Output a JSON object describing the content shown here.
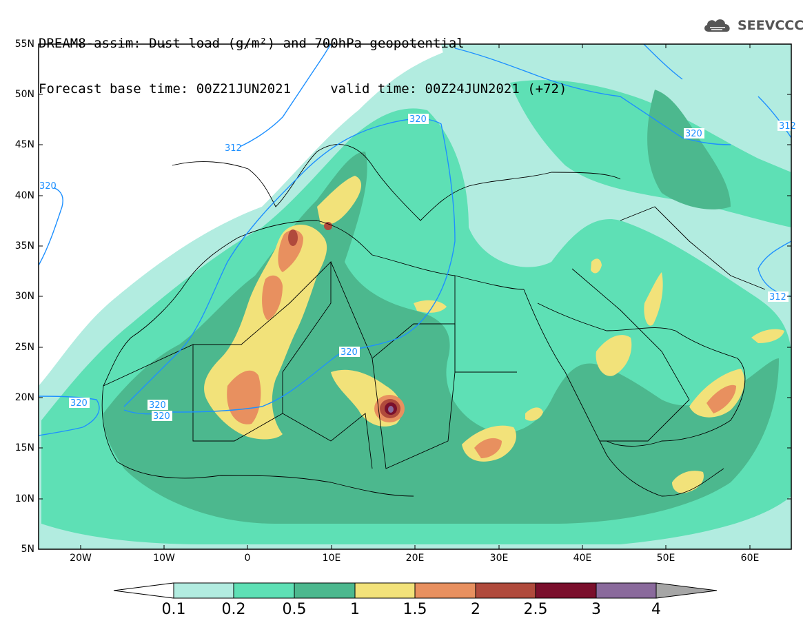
{
  "header": {
    "title_line1": "DREAM8-assim: Dust load (g/m²) and 700hPa geopotential",
    "title_line2": "Forecast base time: 00Z21JUN2021     valid time: 00Z24JUN2021 (+72)",
    "logo_text": "SEEVCCC"
  },
  "axes": {
    "lat_labels": [
      "55N",
      "50N",
      "45N",
      "40N",
      "35N",
      "30N",
      "25N",
      "20N",
      "15N",
      "10N",
      "5N"
    ],
    "lon_labels": [
      "20W",
      "10W",
      "0",
      "10E",
      "20E",
      "30E",
      "40E",
      "50E",
      "60E"
    ]
  },
  "contours": {
    "labels": [
      "320",
      "312",
      "320",
      "320",
      "320",
      "320",
      "312",
      "312",
      "320",
      "320"
    ],
    "color": "#1e90ff"
  },
  "colorbar": {
    "levels": [
      "0.1",
      "0.2",
      "0.5",
      "1",
      "1.5",
      "2",
      "2.5",
      "3",
      "4"
    ],
    "colors": [
      "#ffffff",
      "#b2ece0",
      "#5ee0b5",
      "#4cb88e",
      "#f2e27a",
      "#e8905f",
      "#b04a3c",
      "#7a0f2c",
      "#8a6a9c",
      "#a6a6a6"
    ]
  }
}
